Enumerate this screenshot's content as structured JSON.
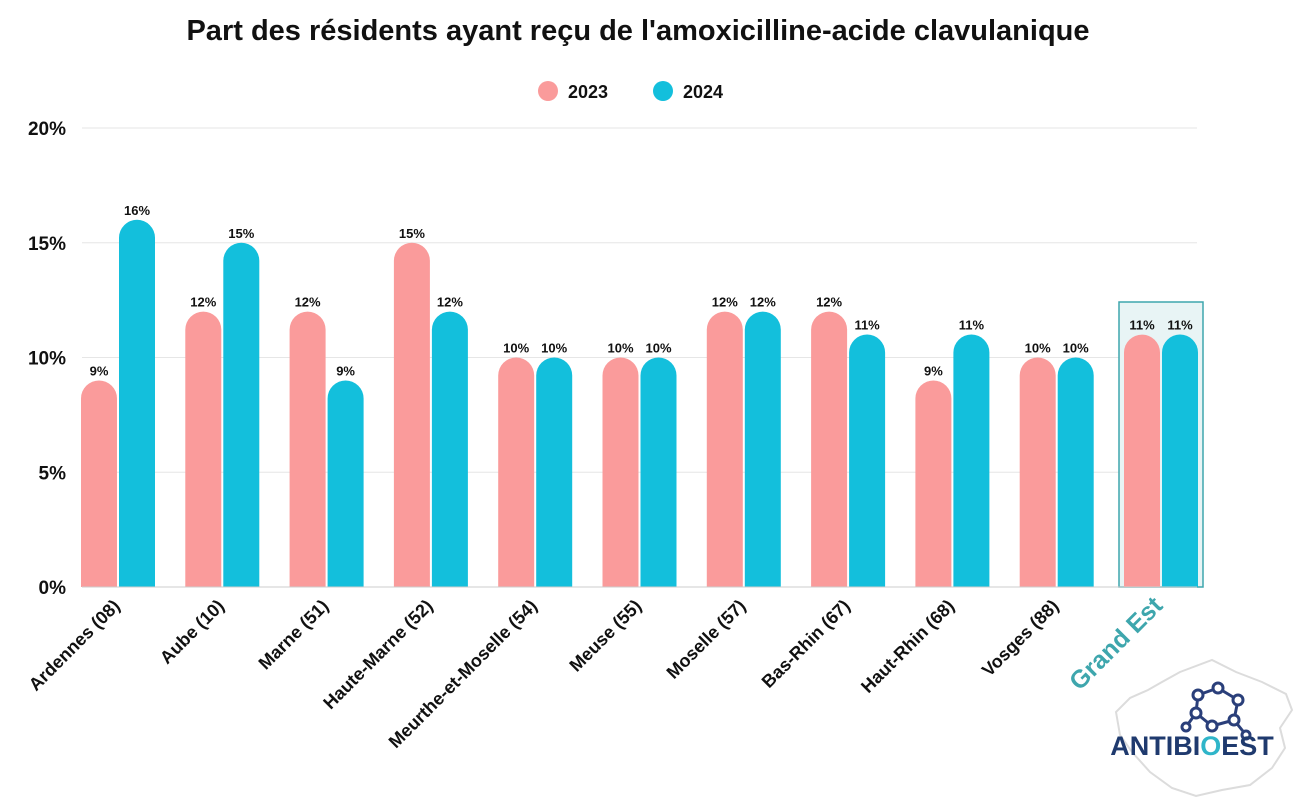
{
  "chart_data": {
    "type": "bar",
    "title": "Part des résidents ayant reçu de l'amoxicilline-acide clavulanique",
    "categories": [
      "Ardennes (08)",
      "Aube (10)",
      "Marne (51)",
      "Haute-Marne (52)",
      "Meurthe-et-Moselle (54)",
      "Meuse (55)",
      "Moselle (57)",
      "Bas-Rhin (67)",
      "Haut-Rhin (68)",
      "Vosges (88)",
      "Grand Est"
    ],
    "series": [
      {
        "name": "2023",
        "values": [
          9,
          12,
          12,
          15,
          10,
          10,
          12,
          12,
          9,
          10,
          11
        ],
        "labels": [
          "9%",
          "12%",
          "12%",
          "15%",
          "10%",
          "10%",
          "12%",
          "12%",
          "9%",
          "10%",
          "11%"
        ],
        "color": "#fa9b9b"
      },
      {
        "name": "2024",
        "values": [
          16,
          15,
          9,
          12,
          10,
          10,
          12,
          11,
          11,
          10,
          11
        ],
        "labels": [
          "16%",
          "15%",
          "9%",
          "12%",
          "10%",
          "10%",
          "12%",
          "11%",
          "11%",
          "10%",
          "11%"
        ],
        "color": "#13bfdc"
      }
    ],
    "ylim": [
      0,
      20
    ],
    "yticks": [
      0,
      5,
      10,
      15,
      20
    ],
    "ytick_labels": [
      "0%",
      "5%",
      "10%",
      "15%",
      "20%"
    ],
    "xlabel": "",
    "ylabel": "",
    "grid": true,
    "legend": "top-center",
    "highlight_category": "Grand Est",
    "highlight_color": "#3ea6ad"
  },
  "logo": {
    "text_part1": "ANTIBI",
    "text_part2": "O",
    "text_part3": "EST",
    "text_color": "#1f3a6e",
    "accent_color": "#2fb5c9",
    "icon": "molecule-icon"
  }
}
